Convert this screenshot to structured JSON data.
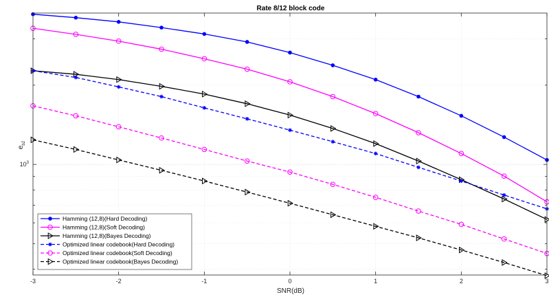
{
  "chart_data": {
    "type": "line",
    "title": "Rate 8/12 block code",
    "xlabel": "SNR(dB)",
    "ylabel_base": "e",
    "ylabel_sub": "b2",
    "xlim": [
      -3,
      3
    ],
    "ylog": true,
    "ylim_log10": [
      2.58,
      3.575
    ],
    "grid": true,
    "legend_position": "bottom-left",
    "x_ticks": [
      -3,
      -2,
      -1,
      0,
      1,
      2,
      3
    ],
    "y_ticks": [
      {
        "value": 1000,
        "base": "10",
        "exp": "3"
      }
    ],
    "x": [
      -3,
      -2.5,
      -2,
      -1.5,
      -1,
      -0.5,
      0,
      0.5,
      1,
      1.5,
      2,
      2.5,
      3
    ],
    "series": [
      {
        "name": "Hamming (12,8)(Hard Decoding)",
        "color": "#0000ff",
        "dash": "solid",
        "marker": "dot",
        "values": [
          3720,
          3610,
          3480,
          3310,
          3130,
          2920,
          2660,
          2380,
          2100,
          1810,
          1530,
          1270,
          1040
        ]
      },
      {
        "name": "Hamming (12,8)(Soft Decoding)",
        "color": "#ff00ff",
        "dash": "solid",
        "marker": "circle",
        "values": [
          3290,
          3120,
          2940,
          2740,
          2520,
          2300,
          2060,
          1810,
          1560,
          1320,
          1100,
          903,
          721
        ]
      },
      {
        "name": "Hamming (12,8)(Bayes Decoding)",
        "color": "#000000",
        "dash": "solid",
        "marker": "triangle",
        "values": [
          2270,
          2200,
          2100,
          1980,
          1850,
          1700,
          1540,
          1370,
          1200,
          1030,
          875,
          739,
          618
        ]
      },
      {
        "name": "Optimized linear codebook(Hard Decoding)",
        "color": "#0000ff",
        "dash": "dashed",
        "marker": "asterisk",
        "values": [
          2270,
          2140,
          1970,
          1810,
          1640,
          1490,
          1350,
          1220,
          1100,
          975,
          865,
          765,
          678
        ]
      },
      {
        "name": "Optimized linear codebook(Soft Decoding)",
        "color": "#ff00ff",
        "dash": "dashed",
        "marker": "circle",
        "values": [
          1670,
          1530,
          1390,
          1260,
          1140,
          1030,
          935,
          840,
          750,
          665,
          592,
          521,
          459
        ]
      },
      {
        "name": "Optimized linear codebook(Bayes Decoding)",
        "color": "#000000",
        "dash": "dashed",
        "marker": "triangle",
        "values": [
          1240,
          1140,
          1040,
          950,
          865,
          785,
          712,
          644,
          582,
          526,
          473,
          424,
          378
        ]
      }
    ]
  }
}
